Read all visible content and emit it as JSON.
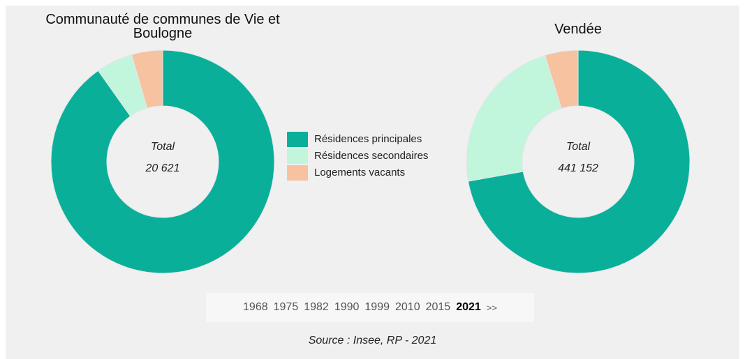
{
  "chart_data": [
    {
      "type": "pie",
      "title": "Communauté de communes de Vie et Boulogne",
      "values": [
        90.2,
        5.3,
        4.5
      ],
      "center_label": "Total",
      "center_value": "20 621"
    },
    {
      "type": "pie",
      "title": "Vendée",
      "values": [
        72.2,
        23.0,
        4.8
      ],
      "center_label": "Total",
      "center_value": "441 152"
    }
  ],
  "legend": {
    "categories": [
      "Résidences principales",
      "Résidences secondaires",
      "Logements vacants"
    ],
    "colors": [
      "#0aaf9a",
      "#c1f5dc",
      "#f7c2a0"
    ]
  },
  "years": [
    "1968",
    "1975",
    "1982",
    "1990",
    "1999",
    "2010",
    "2015",
    "2021"
  ],
  "selected_year": 7,
  "next": ">>",
  "source": "Source : Insee, RP - 2021"
}
